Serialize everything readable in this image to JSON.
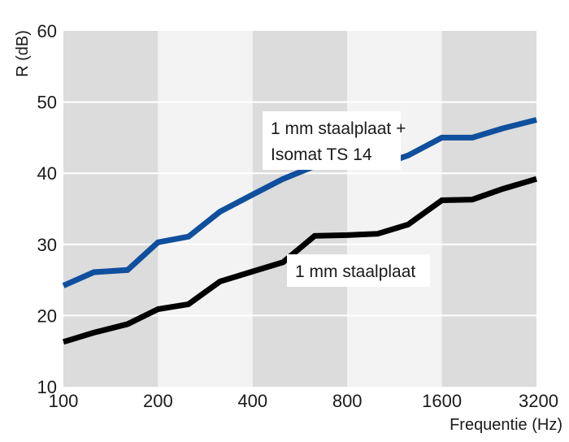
{
  "chart_data": {
    "type": "line",
    "xscale": "log2",
    "xlabel": "Frequentie (Hz)",
    "ylabel": "R (dB)",
    "xlim": [
      100,
      3200
    ],
    "ylim": [
      10,
      60
    ],
    "x_ticks": [
      100,
      200,
      400,
      800,
      1600,
      3200
    ],
    "x_tick_labels": [
      "100",
      "200",
      "400",
      "800",
      "1600",
      "3200"
    ],
    "y_ticks": [
      10,
      20,
      30,
      40,
      50,
      60
    ],
    "y_tick_labels": [
      "10",
      "20",
      "30",
      "40",
      "50",
      "60"
    ],
    "grid": true,
    "band_colors": [
      "#dcdcdc",
      "#f3f3f3"
    ],
    "series": [
      {
        "name": "1 mm staalplaat + Isomat TS 14",
        "label_lines": [
          "1 mm staalplaat +",
          "Isomat TS 14"
        ],
        "color": "#0f4f9e",
        "x": [
          100,
          125,
          160,
          200,
          250,
          315,
          400,
          500,
          630,
          800,
          1000,
          1250,
          1600,
          2000,
          2500,
          3200
        ],
        "y": [
          24.2,
          26.1,
          26.4,
          30.3,
          31.1,
          34.6,
          37.0,
          39.2,
          41.0,
          41.0,
          41.0,
          42.5,
          45.0,
          45.0,
          46.3,
          47.5
        ]
      },
      {
        "name": "1 mm staalplaat",
        "label_lines": [
          "1 mm staalplaat"
        ],
        "color": "#000000",
        "x": [
          100,
          125,
          160,
          200,
          250,
          315,
          400,
          500,
          630,
          800,
          1000,
          1250,
          1600,
          2000,
          2500,
          3200
        ],
        "y": [
          16.3,
          17.6,
          18.8,
          20.9,
          21.6,
          24.8,
          26.2,
          27.5,
          31.2,
          31.3,
          31.5,
          32.8,
          36.2,
          36.3,
          37.8,
          39.2
        ]
      }
    ]
  }
}
